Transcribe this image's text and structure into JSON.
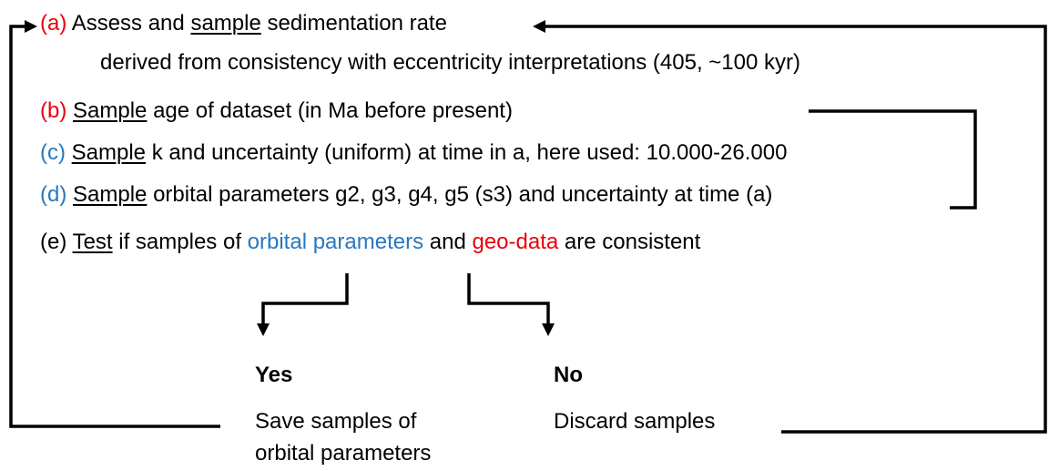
{
  "steps": [
    {
      "label": "(a)",
      "pre": "Assess and",
      "verb": "sample",
      "rest": "sedimentation rate",
      "detail": "derived from consistency with eccentricity interpretations (405, ~100 kyr)"
    },
    {
      "label": "(b)",
      "verb": "Sample",
      "rest": "age of dataset (in Ma before present)"
    },
    {
      "label": "(c)",
      "verb": "Sample",
      "rest": "k and uncertainty (uniform) at time in a, here used: 10.000-26.000"
    },
    {
      "label": "(d)",
      "verb": "Sample",
      "rest": "orbital parameters g2, g3, g4, g5 (s3) and uncertainty at time (a)"
    },
    {
      "label": "(e)",
      "verb": "Test",
      "rest": "if samples of",
      "term1": "orbital parameters",
      "mid": "and",
      "term2": "geo-data",
      "end": "are consistent"
    }
  ],
  "outcomes": [
    {
      "title": "Yes",
      "lines": [
        "Save samples of",
        "orbital parameters"
      ]
    },
    {
      "title": "No",
      "lines": [
        "Discard samples"
      ]
    }
  ]
}
